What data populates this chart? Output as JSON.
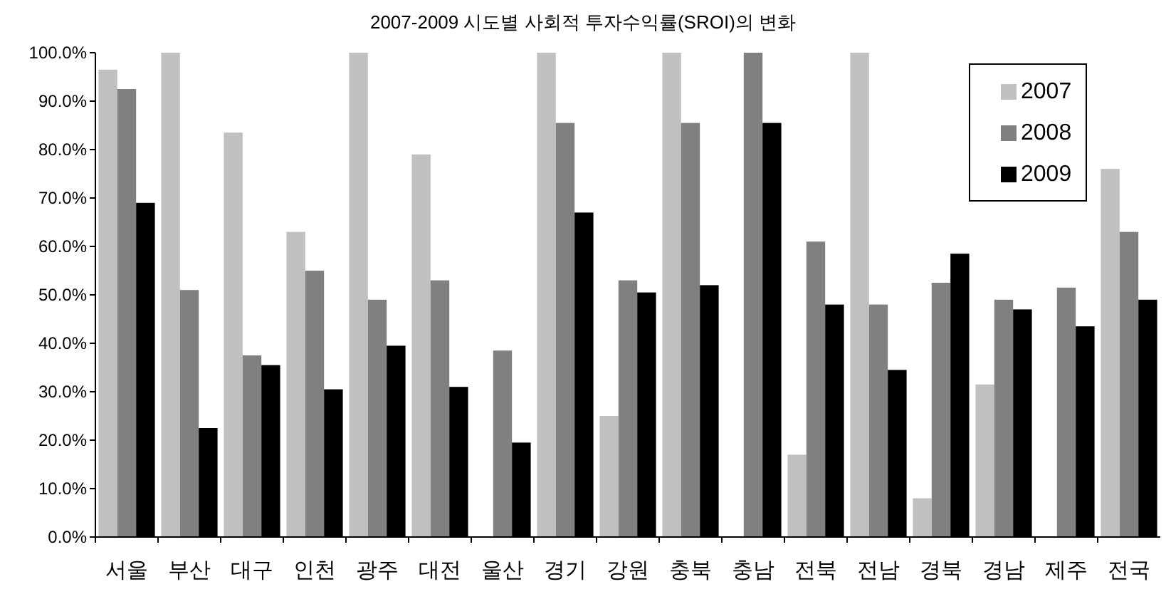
{
  "chart_data": {
    "type": "bar",
    "title": "2007-2009 시도별 사회적 투자수익률(SROI)의 변화",
    "categories": [
      "서울",
      "부산",
      "대구",
      "인천",
      "광주",
      "대전",
      "울산",
      "경기",
      "강원",
      "충북",
      "충남",
      "전북",
      "전남",
      "경북",
      "경남",
      "제주",
      "전국"
    ],
    "series": [
      {
        "name": "2007",
        "color": "#c0c0c0",
        "values": [
          96.5,
          100,
          83.5,
          63,
          100,
          79,
          null,
          100,
          25,
          100,
          null,
          17,
          100,
          8,
          31.5,
          null,
          76
        ]
      },
      {
        "name": "2008",
        "color": "#808080",
        "values": [
          92.5,
          51,
          37.5,
          55,
          49,
          53,
          38.5,
          85.5,
          53,
          85.5,
          100,
          61,
          48,
          52.5,
          49,
          51.5,
          63
        ]
      },
      {
        "name": "2009",
        "color": "#000000",
        "values": [
          69,
          22.5,
          35.5,
          30.5,
          39.5,
          31,
          19.5,
          67,
          50.5,
          52,
          85.5,
          48,
          34.5,
          58.5,
          47,
          43.5,
          49
        ]
      }
    ],
    "ylim": [
      0,
      100
    ],
    "yticks": [
      {
        "value": 0,
        "label": "0.0%"
      },
      {
        "value": 10,
        "label": "10.0%"
      },
      {
        "value": 20,
        "label": "20.0%"
      },
      {
        "value": 30,
        "label": "30.0%"
      },
      {
        "value": 40,
        "label": "40.0%"
      },
      {
        "value": 50,
        "label": "50.0%"
      },
      {
        "value": 60,
        "label": "60.0%"
      },
      {
        "value": 70,
        "label": "70.0%"
      },
      {
        "value": 80,
        "label": "80.0%"
      },
      {
        "value": 90,
        "label": "90.0%"
      },
      {
        "value": 100,
        "label": "100.0%"
      }
    ],
    "legend": "top right"
  }
}
